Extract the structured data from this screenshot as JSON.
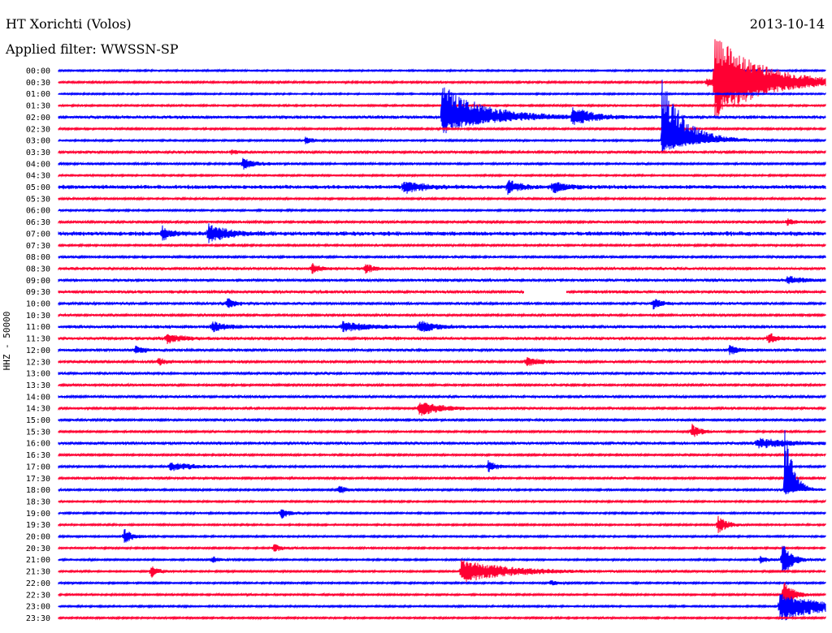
{
  "header": {
    "station": "HT Xorichti (Volos)",
    "date": "2013-10-14",
    "filter": "Applied filter: WWSSN-SP"
  },
  "chart_data": {
    "type": "helicorder",
    "ylabel": "HHZ - 50000",
    "row_labels": [
      "00:00",
      "00:30",
      "01:00",
      "01:30",
      "02:00",
      "02:30",
      "03:00",
      "03:30",
      "04:00",
      "04:30",
      "05:00",
      "05:30",
      "06:00",
      "06:30",
      "07:00",
      "07:30",
      "08:00",
      "08:30",
      "09:00",
      "09:30",
      "10:00",
      "10:30",
      "11:00",
      "11:30",
      "12:00",
      "12:30",
      "13:00",
      "13:30",
      "14:00",
      "14:30",
      "15:00",
      "15:30",
      "16:00",
      "16:30",
      "17:00",
      "17:30",
      "18:00",
      "18:30",
      "19:00",
      "19:30",
      "20:00",
      "20:30",
      "21:00",
      "21:30",
      "22:00",
      "22:30",
      "23:00",
      "23:30"
    ],
    "colors": [
      "#0000ff",
      "#ff0033"
    ],
    "row_noise": [
      0.8,
      1.0,
      0.8,
      0.9,
      1.6,
      1.0,
      0.9,
      1.2,
      1.0,
      0.9,
      2.0,
      1.0,
      0.9,
      1.2,
      2.2,
      1.0,
      1.1,
      1.4,
      1.4,
      1.5,
      1.3,
      1.1,
      1.6,
      1.4,
      1.3,
      1.2,
      1.2,
      1.1,
      1.2,
      1.1,
      1.1,
      1.0,
      1.4,
      1.0,
      1.0,
      1.1,
      1.0,
      0.9,
      0.9,
      0.9,
      0.9,
      0.9,
      0.9,
      0.9,
      0.9,
      0.9,
      0.9,
      0.9
    ],
    "gaps": [
      {
        "row": 19,
        "from_fraction": 0.607,
        "to_fraction": 0.662
      }
    ],
    "events": [
      {
        "row": 1,
        "t": 0.845,
        "amp": 5,
        "up": 4,
        "dur": 0.02
      },
      {
        "row": 1,
        "t": 0.855,
        "amp": 45,
        "up": 58,
        "dur": 0.06
      },
      {
        "row": 4,
        "t": 0.5,
        "amp": 20,
        "up": 40,
        "dur": 0.05
      },
      {
        "row": 4,
        "t": 0.67,
        "amp": 12,
        "up": 14,
        "dur": 0.02
      },
      {
        "row": 6,
        "t": 0.787,
        "amp": 16,
        "up": 75,
        "dur": 0.03
      },
      {
        "row": 6,
        "t": 0.322,
        "amp": 4,
        "up": 4,
        "dur": 0.01
      },
      {
        "row": 7,
        "t": 0.225,
        "amp": 3,
        "up": 3,
        "dur": 0.01
      },
      {
        "row": 8,
        "t": 0.24,
        "amp": 7,
        "up": 7,
        "dur": 0.015
      },
      {
        "row": 10,
        "t": 0.45,
        "amp": 8,
        "up": 8,
        "dur": 0.02
      },
      {
        "row": 10,
        "t": 0.585,
        "amp": 8,
        "up": 10,
        "dur": 0.015
      },
      {
        "row": 10,
        "t": 0.645,
        "amp": 7,
        "up": 7,
        "dur": 0.015
      },
      {
        "row": 13,
        "t": 0.95,
        "amp": 4,
        "up": 4,
        "dur": 0.01
      },
      {
        "row": 14,
        "t": 0.135,
        "amp": 9,
        "up": 9,
        "dur": 0.01
      },
      {
        "row": 14,
        "t": 0.195,
        "amp": 12,
        "up": 12,
        "dur": 0.02
      },
      {
        "row": 17,
        "t": 0.33,
        "amp": 6,
        "up": 6,
        "dur": 0.01
      },
      {
        "row": 17,
        "t": 0.4,
        "amp": 6,
        "up": 6,
        "dur": 0.01
      },
      {
        "row": 18,
        "t": 0.95,
        "amp": 5,
        "up": 5,
        "dur": 0.02
      },
      {
        "row": 20,
        "t": 0.22,
        "amp": 7,
        "up": 7,
        "dur": 0.01
      },
      {
        "row": 20,
        "t": 0.775,
        "amp": 7,
        "up": 7,
        "dur": 0.01
      },
      {
        "row": 22,
        "t": 0.2,
        "amp": 6,
        "up": 6,
        "dur": 0.015
      },
      {
        "row": 22,
        "t": 0.37,
        "amp": 6,
        "up": 6,
        "dur": 0.03
      },
      {
        "row": 22,
        "t": 0.47,
        "amp": 7,
        "up": 7,
        "dur": 0.02
      },
      {
        "row": 23,
        "t": 0.14,
        "amp": 6,
        "up": 6,
        "dur": 0.02
      },
      {
        "row": 23,
        "t": 0.925,
        "amp": 8,
        "up": 8,
        "dur": 0.01
      },
      {
        "row": 24,
        "t": 0.1,
        "amp": 6,
        "up": 6,
        "dur": 0.01
      },
      {
        "row": 24,
        "t": 0.875,
        "amp": 6,
        "up": 6,
        "dur": 0.01
      },
      {
        "row": 25,
        "t": 0.13,
        "amp": 5,
        "up": 5,
        "dur": 0.01
      },
      {
        "row": 25,
        "t": 0.61,
        "amp": 5,
        "up": 5,
        "dur": 0.02
      },
      {
        "row": 29,
        "t": 0.47,
        "amp": 10,
        "up": 10,
        "dur": 0.025
      },
      {
        "row": 31,
        "t": 0.826,
        "amp": 9,
        "up": 9,
        "dur": 0.01
      },
      {
        "row": 32,
        "t": 0.91,
        "amp": 6,
        "up": 6,
        "dur": 0.04
      },
      {
        "row": 34,
        "t": 0.145,
        "amp": 5,
        "up": 5,
        "dur": 0.03
      },
      {
        "row": 34,
        "t": 0.56,
        "amp": 8,
        "up": 8,
        "dur": 0.01
      },
      {
        "row": 36,
        "t": 0.365,
        "amp": 5,
        "up": 5,
        "dur": 0.01
      },
      {
        "row": 36,
        "t": 0.947,
        "amp": 7,
        "up": 90,
        "dur": 0.01
      },
      {
        "row": 38,
        "t": 0.29,
        "amp": 7,
        "up": 7,
        "dur": 0.01
      },
      {
        "row": 39,
        "t": 0.86,
        "amp": 12,
        "up": 12,
        "dur": 0.01
      },
      {
        "row": 40,
        "t": 0.085,
        "amp": 10,
        "up": 10,
        "dur": 0.01
      },
      {
        "row": 41,
        "t": 0.28,
        "amp": 5,
        "up": 5,
        "dur": 0.01
      },
      {
        "row": 42,
        "t": 0.2,
        "amp": 4,
        "up": 4,
        "dur": 0.01
      },
      {
        "row": 42,
        "t": 0.915,
        "amp": 4,
        "up": 4,
        "dur": 0.01
      },
      {
        "row": 42,
        "t": 0.943,
        "amp": 24,
        "up": 24,
        "dur": 0.012
      },
      {
        "row": 43,
        "t": 0.12,
        "amp": 8,
        "up": 8,
        "dur": 0.01
      },
      {
        "row": 43,
        "t": 0.525,
        "amp": 14,
        "up": 14,
        "dur": 0.06
      },
      {
        "row": 44,
        "t": 0.64,
        "amp": 4,
        "up": 4,
        "dur": 0.01
      },
      {
        "row": 45,
        "t": 0.945,
        "amp": 24,
        "up": 24,
        "dur": 0.01
      },
      {
        "row": 46,
        "t": 0.94,
        "amp": 20,
        "up": 16,
        "dur": 0.05
      }
    ]
  }
}
